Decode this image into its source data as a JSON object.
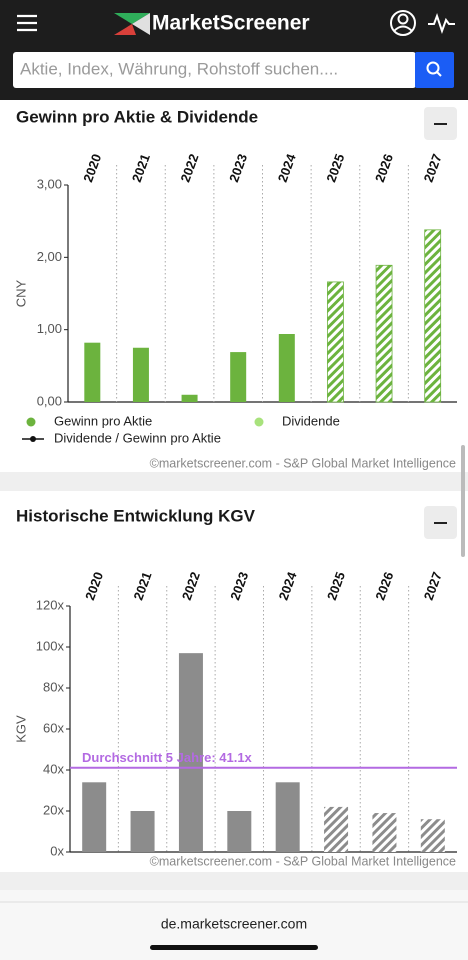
{
  "header": {
    "logo": "MarketScreener",
    "search_placeholder": "Aktie, Index, Währung, Rohstoff suchen...."
  },
  "chart_data": [
    {
      "type": "bar",
      "title": "Gewinn pro Aktie & Dividende",
      "ylabel": "CNY",
      "categories": [
        "2020",
        "2021",
        "2022",
        "2023",
        "2024",
        "2025",
        "2026",
        "2027"
      ],
      "hatched": [
        false,
        false,
        false,
        false,
        false,
        true,
        true,
        true
      ],
      "series": [
        {
          "name": "Gewinn pro Aktie",
          "color": "#6cb33e",
          "values": [
            0.82,
            0.75,
            0.1,
            0.69,
            0.94,
            1.66,
            1.89,
            2.38
          ]
        },
        {
          "name": "Dividende",
          "color": "#a8e27c",
          "values": [
            null,
            null,
            null,
            null,
            null,
            null,
            null,
            null
          ]
        },
        {
          "name": "Dividende / Gewinn pro Aktie",
          "color": "#111111",
          "values": [
            null,
            null,
            null,
            null,
            null,
            null,
            null,
            null
          ]
        }
      ],
      "ylim": [
        0,
        3
      ],
      "yticks": [
        {
          "value": 0,
          "label": "0,00"
        },
        {
          "value": 1,
          "label": "1,00"
        },
        {
          "value": 2,
          "label": "2,00"
        },
        {
          "value": 3,
          "label": "3,00"
        }
      ],
      "source": "©marketscreener.com - S&P Global Market Intelligence"
    },
    {
      "type": "bar",
      "title": "Historische Entwicklung KGV",
      "ylabel": "KGV",
      "categories": [
        "2020",
        "2021",
        "2022",
        "2023",
        "2024",
        "2025",
        "2026",
        "2027"
      ],
      "hatched": [
        false,
        false,
        false,
        false,
        false,
        true,
        true,
        true
      ],
      "series": [
        {
          "name": "KGV",
          "color": "#8c8c8c",
          "values": [
            34,
            20,
            97,
            20,
            34,
            22,
            19,
            16
          ]
        }
      ],
      "ylim": [
        0,
        120
      ],
      "yticks": [
        {
          "value": 0,
          "label": "0x"
        },
        {
          "value": 20,
          "label": "20x"
        },
        {
          "value": 40,
          "label": "40x"
        },
        {
          "value": 60,
          "label": "60x"
        },
        {
          "value": 80,
          "label": "80x"
        },
        {
          "value": 100,
          "label": "100x"
        },
        {
          "value": 120,
          "label": "120x"
        }
      ],
      "hlines": [
        {
          "value": 41.1,
          "label": "Durchschnitt 5 Jahre: 41.1x",
          "color": "#b36ae2"
        }
      ],
      "source": "©marketscreener.com - S&P Global Market Intelligence"
    }
  ],
  "footer": {
    "url": "de.marketscreener.com"
  }
}
